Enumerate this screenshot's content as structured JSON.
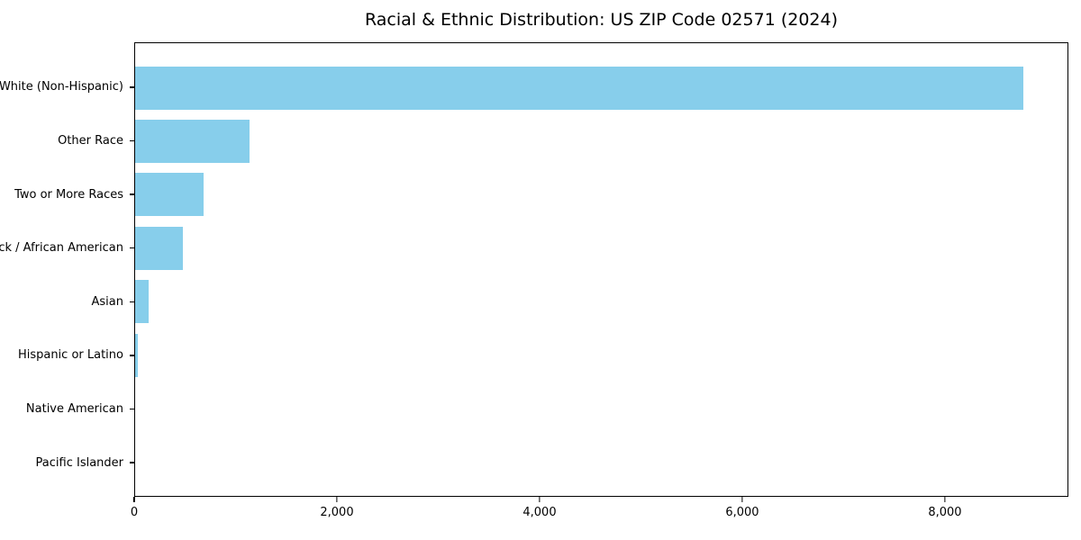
{
  "chart_data": {
    "type": "bar",
    "orientation": "horizontal",
    "title": "Racial & Ethnic Distribution: US ZIP Code 02571 (2024)",
    "categories": [
      "White (Non-Hispanic)",
      "Other Race",
      "Two or More Races",
      "Black / African American",
      "Asian",
      "Hispanic or Latino",
      "Native American",
      "Pacific Islander"
    ],
    "values": [
      8785,
      1129,
      676,
      471,
      133,
      27,
      0,
      0
    ],
    "xlabel": "",
    "ylabel": "",
    "xlim": [
      0,
      9218
    ],
    "xticks": {
      "values": [
        0,
        2000,
        4000,
        6000,
        8000
      ],
      "labels": [
        "0",
        "2,000",
        "4,000",
        "6,000",
        "8,000"
      ]
    },
    "grid": false,
    "legend": null,
    "bar_color": "#87CEEB",
    "axis_color": "#000000",
    "text_color": "#000000",
    "background_color": "#ffffff"
  }
}
